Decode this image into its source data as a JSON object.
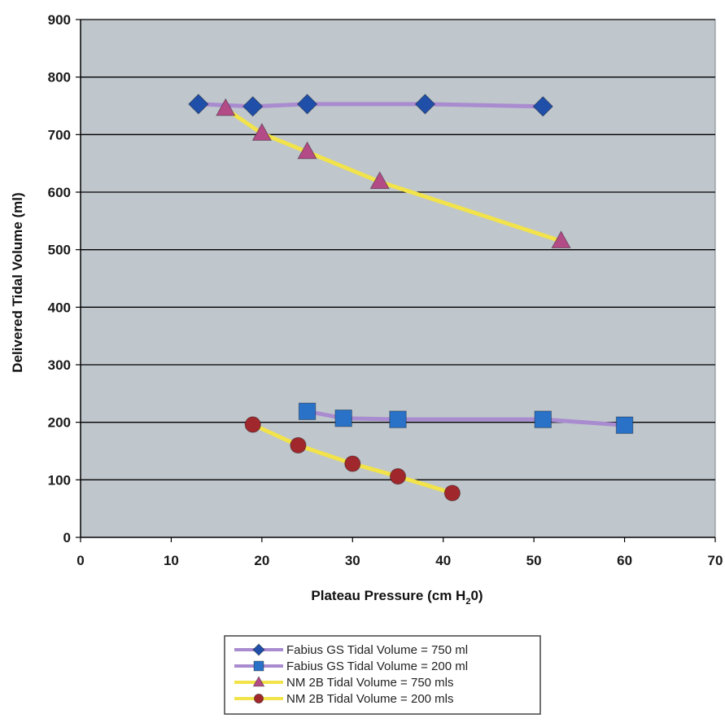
{
  "chart_data": {
    "type": "line",
    "xlabel": "Plateau Pressure (cm H",
    "xlabel_sub": "2",
    "xlabel_end": "0)",
    "ylabel": "Delivered Tidal Volume (ml)",
    "xlim": [
      0,
      70
    ],
    "ylim": [
      0,
      900
    ],
    "xticks": [
      0,
      10,
      20,
      30,
      40,
      50,
      60,
      70
    ],
    "yticks": [
      0,
      100,
      200,
      300,
      400,
      500,
      600,
      700,
      800,
      900
    ],
    "grid": "horizontal",
    "plot_background": "#bfc6cc",
    "legend_position": "bottom-center",
    "series": [
      {
        "name": "Fabius GS Tidal Volume = 750 ml",
        "marker": "diamond",
        "line_color": "#a98bd0",
        "marker_color": "#1f4fa8",
        "x": [
          13,
          19,
          25,
          38,
          51
        ],
        "y": [
          753,
          749,
          753,
          753,
          749
        ]
      },
      {
        "name": "Fabius GS Tidal Volume = 200 ml",
        "marker": "square",
        "line_color": "#a98bd0",
        "marker_color": "#2a72c7",
        "x": [
          25,
          29,
          35,
          51,
          60
        ],
        "y": [
          219,
          207,
          205,
          205,
          195
        ]
      },
      {
        "name": "NM 2B Tidal Volume = 750 mls",
        "marker": "triangle",
        "line_color": "#f2e34a",
        "marker_color": "#b24b86",
        "x": [
          16,
          20,
          25,
          33,
          53
        ],
        "y": [
          745,
          702,
          670,
          618,
          515
        ]
      },
      {
        "name": "NM 2B Tidal Volume = 200 mls",
        "marker": "circle",
        "line_color": "#f2e34a",
        "marker_color": "#a0282c",
        "x": [
          19,
          24,
          30,
          35,
          41
        ],
        "y": [
          196,
          160,
          128,
          106,
          77
        ]
      }
    ]
  }
}
